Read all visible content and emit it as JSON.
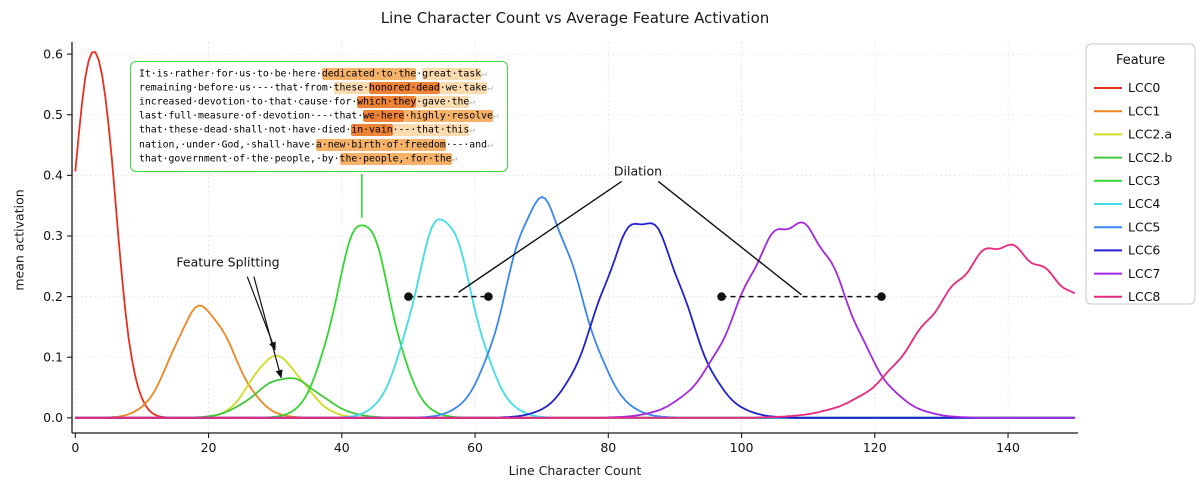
{
  "chart_data": {
    "type": "line",
    "title": "Line Character Count vs Average Feature Activation",
    "xlabel": "Line Character Count",
    "ylabel": "mean activation",
    "xlim": [
      -0.5,
      150.5
    ],
    "ylim": [
      -0.025,
      0.62
    ],
    "xticks": [
      0,
      20,
      40,
      60,
      80,
      100,
      120,
      140
    ],
    "yticks": [
      "0.0",
      "0.1",
      "0.2",
      "0.3",
      "0.4",
      "0.5",
      "0.6"
    ],
    "grid": true,
    "legend": {
      "title": "Feature",
      "position": "outside-upper-right"
    },
    "series": [
      {
        "name": "LCC0",
        "color": "#e6301f",
        "peak_x": 3,
        "peak_y": 0.6,
        "sigma_left": 3.4,
        "sigma_right": 2.9
      },
      {
        "name": "LCC1",
        "color": "#ee8722",
        "peak_x": 19,
        "peak_y": 0.185,
        "sigma_left": 4.2,
        "sigma_right": 4.5
      },
      {
        "name": "LCC2.a",
        "color": "#cedc22",
        "peak_x": 30,
        "peak_y": 0.103,
        "sigma_left": 3.5,
        "sigma_right": 4.0
      },
      {
        "name": "LCC2.b",
        "color": "#44c83c",
        "peak_x": 31.5,
        "peak_y": 0.066,
        "sigma_left": 4.5,
        "sigma_right": 5.0
      },
      {
        "name": "LCC3",
        "color": "#33d633",
        "peak_x": 43,
        "peak_y": 0.322,
        "sigma_left": 4.0,
        "sigma_right": 4.2
      },
      {
        "name": "LCC4",
        "color": "#40dde8",
        "peak_x": 55,
        "peak_y": 0.326,
        "sigma_left": 4.3,
        "sigma_right": 4.6
      },
      {
        "name": "LCC5",
        "color": "#3a87f0",
        "peak_x": 70,
        "peak_y": 0.357,
        "sigma_left": 5.2,
        "sigma_right": 5.6
      },
      {
        "name": "LCC6",
        "color": "#2121cf",
        "peak_x": 85,
        "peak_y": 0.332,
        "sigma_left": 6.0,
        "sigma_right": 6.2
      },
      {
        "name": "LCC7",
        "color": "#a428e0",
        "peak_x": 108,
        "peak_y": 0.326,
        "sigma_left": 8.0,
        "sigma_right": 7.5
      },
      {
        "name": "LCC8",
        "color": "#e8297e",
        "peak_x": 139,
        "peak_y": 0.279,
        "sigma_left": 10.5,
        "sigma_right": 13.5
      }
    ],
    "dilation": {
      "label": "Dilation",
      "label_pos": [
        84.5,
        0.407
      ],
      "dots": [
        [
          50,
          0.2
        ],
        [
          62,
          0.2
        ],
        [
          97,
          0.2
        ],
        [
          121,
          0.2
        ]
      ],
      "dashed_segments": [
        [
          [
            50,
            0.2
          ],
          [
            62,
            0.2
          ]
        ],
        [
          [
            97,
            0.2
          ],
          [
            121,
            0.2
          ]
        ]
      ],
      "pointer_lines": [
        [
          [
            82,
            0.39
          ],
          [
            57.5,
            0.207
          ]
        ],
        [
          [
            87.5,
            0.39
          ],
          [
            109,
            0.203
          ]
        ]
      ]
    },
    "feature_splitting": {
      "label": "Feature Splitting",
      "label_pos": [
        23,
        0.257
      ],
      "arrows": [
        [
          [
            25.8,
            0.233
          ],
          [
            30.0,
            0.112
          ]
        ],
        [
          [
            26.8,
            0.233
          ],
          [
            30.9,
            0.066
          ]
        ]
      ]
    },
    "connector": {
      "x": 43,
      "y_curve": 0.33,
      "color": "#3ddc3d"
    }
  },
  "annotation": {
    "border_color": "#3ddc3d",
    "eol": "↵",
    "highlight_colors": [
      "transparent",
      "#fbdcb0",
      "#f6b269",
      "#ee8336"
    ],
    "lines": [
      {
        "segs": [
          [
            "It·is·rather·for·us·to·be·here·",
            0
          ],
          [
            "dedicated·to·the",
            2
          ],
          [
            "·",
            0
          ],
          [
            "great·task",
            1
          ]
        ]
      },
      {
        "segs": [
          [
            "remaining·before·us·--·that·from·",
            0
          ],
          [
            "these·",
            1
          ],
          [
            "honored·dead",
            3
          ],
          [
            "·we·take",
            1
          ]
        ]
      },
      {
        "segs": [
          [
            "increased·devotion·to·that·cause·for·",
            0
          ],
          [
            "which·they",
            3
          ],
          [
            "·gave·the",
            1
          ]
        ]
      },
      {
        "segs": [
          [
            "last·full·measure·of·devotion·--·that·",
            0
          ],
          [
            "we·here",
            3
          ],
          [
            "·highly·resolve",
            2
          ]
        ]
      },
      {
        "segs": [
          [
            "that·these·dead·shall·not·have·died·",
            0
          ],
          [
            "in·vain",
            3
          ],
          [
            "·--·that·this",
            1
          ]
        ]
      },
      {
        "segs": [
          [
            "nation,·under·God,·shall·have·",
            0
          ],
          [
            "a·new·birth·of·freedom",
            2
          ],
          [
            "·--·and",
            0
          ]
        ]
      },
      {
        "segs": [
          [
            "that·government·of·the·people,·by·",
            0
          ],
          [
            "the·people,·for·the",
            2
          ]
        ]
      }
    ]
  }
}
